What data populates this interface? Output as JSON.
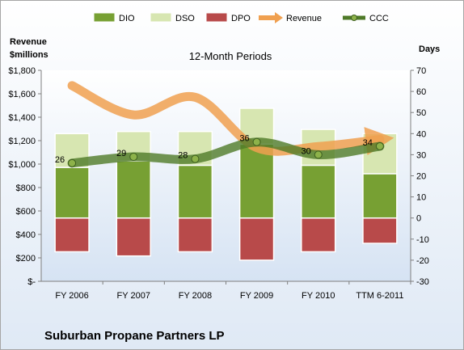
{
  "chart_data": {
    "type": "bar",
    "title": "12-Month Periods",
    "company": "Suburban Propane Partners LP",
    "ylabel_left": "Revenue\n$millions",
    "ylabel_right": "Days",
    "categories": [
      "FY 2006",
      "FY 2007",
      "FY 2008",
      "FY 2009",
      "FY 2010",
      "TTM 6-2011"
    ],
    "left_axis": {
      "ylim": [
        0,
        1800
      ],
      "ticks": [
        "$-",
        "$200",
        "$400",
        "$600",
        "$800",
        "$1,000",
        "$1,200",
        "$1,400",
        "$1,600",
        "$1,800"
      ]
    },
    "right_axis": {
      "ylim": [
        -30,
        70
      ],
      "ticks": [
        "-30",
        "-20",
        "-10",
        "0",
        "10",
        "20",
        "30",
        "40",
        "50",
        "60",
        "70"
      ]
    },
    "series": [
      {
        "name": "DIO",
        "axis": "right",
        "type": "stacked-bar",
        "color": "#77a033",
        "values": [
          24,
          27,
          25,
          35,
          25,
          21
        ]
      },
      {
        "name": "DSO",
        "axis": "right",
        "type": "stacked-bar",
        "color": "#d7e6b1",
        "values": [
          16,
          14,
          16,
          17,
          17,
          19
        ]
      },
      {
        "name": "DPO",
        "axis": "right",
        "type": "stacked-bar",
        "color": "#b84a4a",
        "values": [
          -16,
          -18,
          -16,
          -20,
          -16,
          -12
        ]
      },
      {
        "name": "Revenue",
        "axis": "left",
        "type": "line",
        "color": "#f0a050",
        "values": [
          1670,
          1420,
          1570,
          1140,
          1150,
          1210
        ]
      },
      {
        "name": "CCC",
        "axis": "right",
        "type": "line",
        "color": "#4f7a28",
        "values": [
          26,
          29,
          28,
          36,
          30,
          34
        ],
        "labels": [
          "26",
          "29",
          "28",
          "36",
          "30",
          "34"
        ]
      }
    ],
    "legend": {
      "position": "top",
      "items": [
        "DIO",
        "DSO",
        "DPO",
        "Revenue",
        "CCC"
      ]
    },
    "grid": false
  }
}
